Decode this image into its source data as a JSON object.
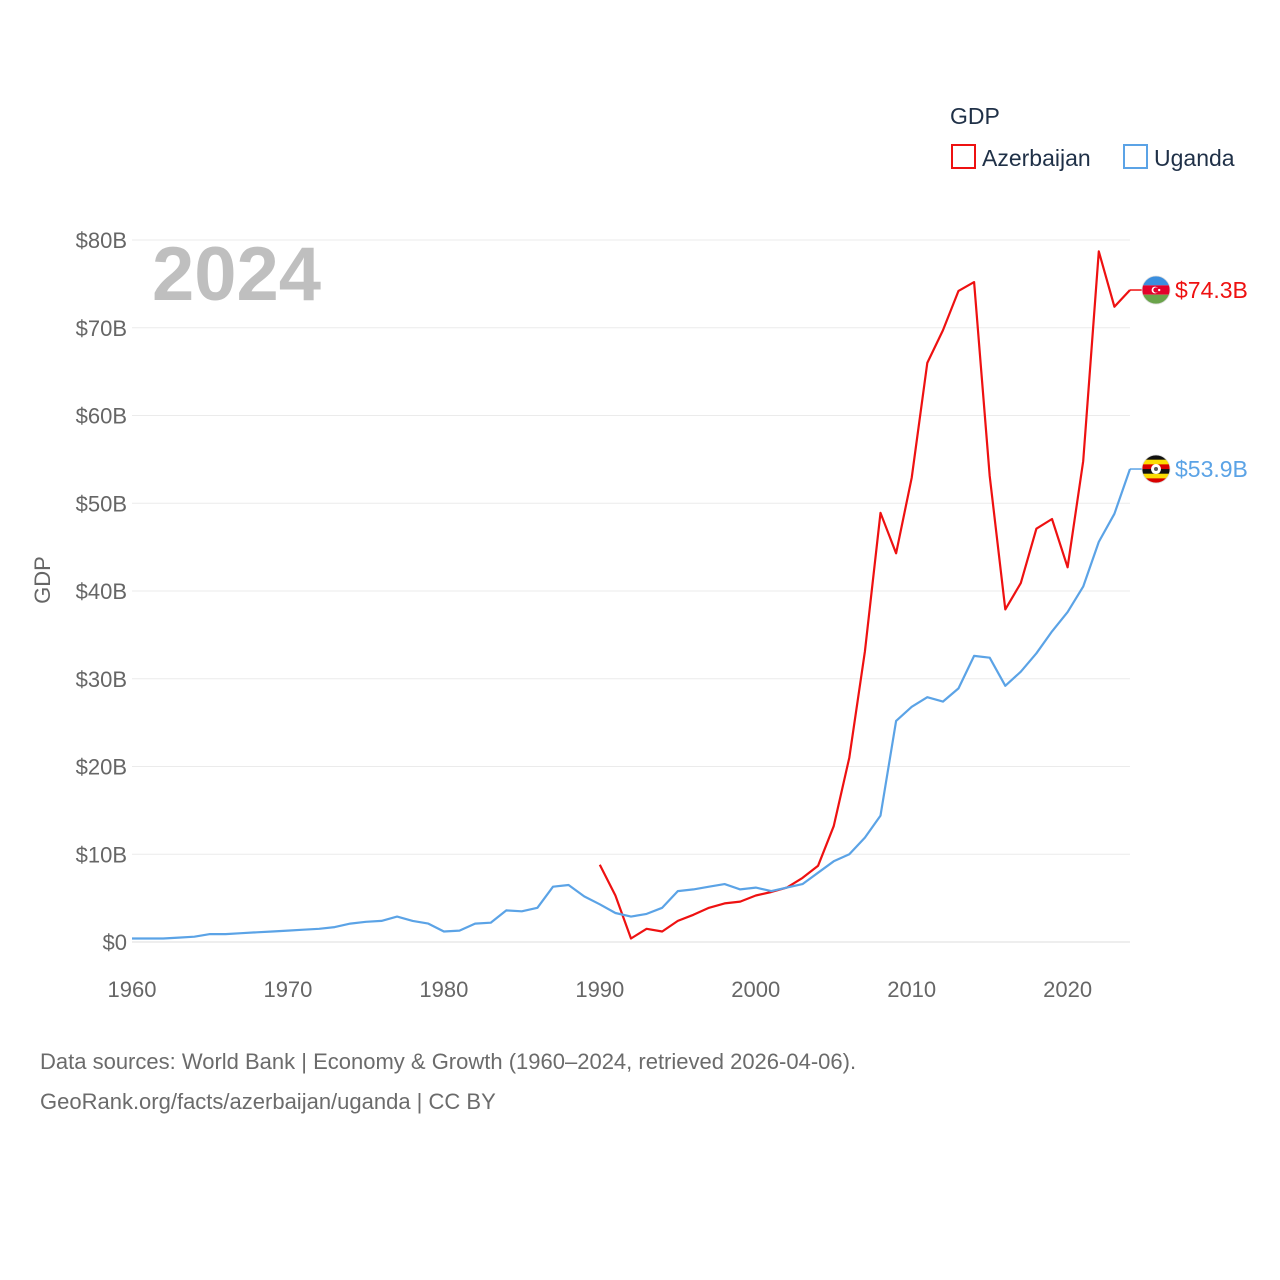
{
  "chart_data": {
    "type": "line",
    "title": "",
    "year_label": "2024",
    "ylabel": "GDP",
    "xlabel": "",
    "xlim": [
      1960,
      2024
    ],
    "ylim": [
      0,
      80
    ],
    "x_ticks": [
      1960,
      1970,
      1980,
      1990,
      2000,
      2010,
      2020
    ],
    "x_tick_labels": [
      "1960",
      "1970",
      "1980",
      "1990",
      "2000",
      "2010",
      "2020"
    ],
    "y_ticks": [
      0,
      10,
      20,
      30,
      40,
      50,
      60,
      70,
      80
    ],
    "y_tick_labels": [
      "$0",
      "$10B",
      "$20B",
      "$30B",
      "$40B",
      "$50B",
      "$60B",
      "$70B",
      "$80B"
    ],
    "grid": true,
    "legend": {
      "title": "GDP",
      "position": "top-right",
      "entries": [
        "Azerbaijan",
        "Uganda"
      ]
    },
    "series": [
      {
        "name": "Azerbaijan",
        "color": "#ee1111",
        "end_label": "$74.3B",
        "flag": "azerbaijan-flag-icon",
        "x": [
          1990,
          1991,
          1992,
          1993,
          1994,
          1995,
          1996,
          1997,
          1998,
          1999,
          2000,
          2001,
          2002,
          2003,
          2004,
          2005,
          2006,
          2007,
          2008,
          2009,
          2010,
          2011,
          2012,
          2013,
          2014,
          2015,
          2016,
          2017,
          2018,
          2019,
          2020,
          2021,
          2022,
          2023,
          2024
        ],
        "values": [
          8.8,
          5.3,
          0.4,
          1.5,
          1.2,
          2.4,
          3.1,
          3.9,
          4.4,
          4.6,
          5.3,
          5.7,
          6.2,
          7.3,
          8.7,
          13.2,
          21.0,
          33.1,
          48.9,
          44.3,
          52.9,
          66.0,
          69.7,
          74.2,
          75.2,
          53.1,
          37.9,
          40.9,
          47.1,
          48.2,
          42.7,
          54.8,
          78.7,
          72.4,
          74.3
        ]
      },
      {
        "name": "Uganda",
        "color": "#5ba3e6",
        "end_label": "$53.9B",
        "flag": "uganda-flag-icon",
        "x": [
          1960,
          1961,
          1962,
          1963,
          1964,
          1965,
          1966,
          1967,
          1968,
          1969,
          1970,
          1971,
          1972,
          1973,
          1974,
          1975,
          1976,
          1977,
          1978,
          1979,
          1980,
          1981,
          1982,
          1983,
          1984,
          1985,
          1986,
          1987,
          1988,
          1989,
          1990,
          1991,
          1992,
          1993,
          1994,
          1995,
          1996,
          1997,
          1998,
          1999,
          2000,
          2001,
          2002,
          2003,
          2004,
          2005,
          2006,
          2007,
          2008,
          2009,
          2010,
          2011,
          2012,
          2013,
          2014,
          2015,
          2016,
          2017,
          2018,
          2019,
          2020,
          2021,
          2022,
          2023,
          2024
        ],
        "values": [
          0.4,
          0.4,
          0.4,
          0.5,
          0.6,
          0.9,
          0.9,
          1.0,
          1.1,
          1.2,
          1.3,
          1.4,
          1.5,
          1.7,
          2.1,
          2.3,
          2.4,
          2.9,
          2.4,
          2.1,
          1.2,
          1.3,
          2.1,
          2.2,
          3.6,
          3.5,
          3.9,
          6.3,
          6.5,
          5.2,
          4.3,
          3.3,
          2.9,
          3.2,
          3.9,
          5.8,
          6.0,
          6.3,
          6.6,
          6.0,
          6.2,
          5.8,
          6.2,
          6.6,
          7.9,
          9.2,
          10.0,
          11.9,
          14.4,
          25.2,
          26.8,
          27.9,
          27.4,
          28.9,
          32.6,
          32.4,
          29.2,
          30.8,
          32.9,
          35.4,
          37.6,
          40.5,
          45.6,
          48.8,
          53.9
        ]
      }
    ]
  },
  "source_lines": [
    "Data sources: World Bank | Economy & Growth (1960–2024, retrieved 2026-04-06).",
    "GeoRank.org/facts/azerbaijan/uganda | CC BY"
  ]
}
